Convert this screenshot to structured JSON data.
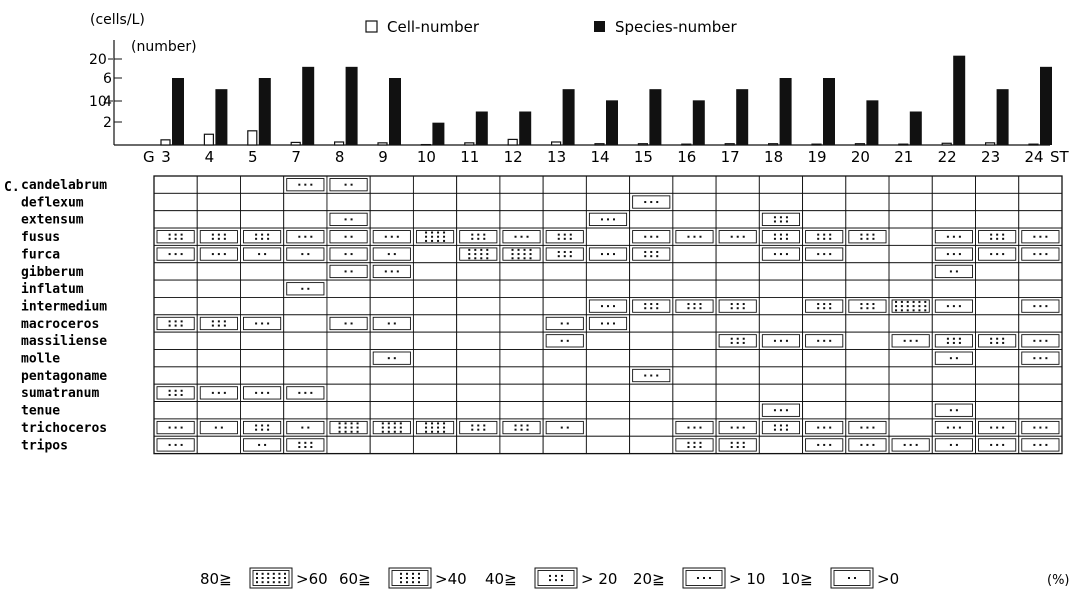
{
  "chart_data": [
    {
      "type": "bar",
      "categories": [
        "3",
        "4",
        "5",
        "7",
        "8",
        "9",
        "10",
        "11",
        "12",
        "13",
        "14",
        "15",
        "16",
        "17",
        "18",
        "19",
        "20",
        "21",
        "22",
        "23",
        "24"
      ],
      "x_start_label": "G",
      "x_end_label": "ST",
      "left_axis_unit": "(cells/L)",
      "right_axis_unit": "(number)",
      "left_ticks": [
        "20",
        "10"
      ],
      "right_ticks": [
        "6",
        "4",
        "2"
      ],
      "legend": {
        "cell": {
          "marker": "white-box",
          "label": "Cell-number"
        },
        "species": {
          "marker": "black-box",
          "label": "Species-number"
        }
      },
      "series": [
        {
          "name": "Cell-number",
          "values": [
            1.2,
            2.5,
            3.3,
            0.6,
            0.7,
            0.5,
            0.1,
            0.5,
            1.3,
            0.7,
            0.3,
            0.3,
            0.2,
            0.3,
            0.3,
            0.2,
            0.3,
            0.2,
            0.4,
            0.5,
            0.2
          ]
        },
        {
          "name": "Species-number",
          "values": [
            6,
            5,
            6,
            7,
            7,
            6,
            2,
            3,
            3,
            5,
            4,
            5,
            4,
            5,
            6,
            6,
            4,
            3,
            8,
            5,
            7
          ]
        }
      ],
      "species_ylim": [
        0,
        8
      ]
    },
    {
      "type": "table",
      "genus_prefix": "C.",
      "stations": [
        "3",
        "4",
        "5",
        "7",
        "8",
        "9",
        "10",
        "11",
        "12",
        "13",
        "14",
        "15",
        "16",
        "17",
        "18",
        "19",
        "20",
        "21",
        "22",
        "23",
        "24"
      ],
      "rows": [
        {
          "name": "candelabrum",
          "classes": [
            0,
            0,
            0,
            2,
            1,
            0,
            0,
            0,
            0,
            0,
            0,
            0,
            0,
            0,
            0,
            0,
            0,
            0,
            0,
            0,
            0
          ]
        },
        {
          "name": "deflexum",
          "classes": [
            0,
            0,
            0,
            0,
            0,
            0,
            0,
            0,
            0,
            0,
            0,
            2,
            0,
            0,
            0,
            0,
            0,
            0,
            0,
            0,
            0
          ]
        },
        {
          "name": "extensum",
          "classes": [
            0,
            0,
            0,
            0,
            1,
            0,
            0,
            0,
            0,
            0,
            2,
            0,
            0,
            0,
            3,
            0,
            0,
            0,
            0,
            0,
            0
          ]
        },
        {
          "name": "fusus",
          "classes": [
            3,
            3,
            3,
            2,
            1,
            2,
            4,
            3,
            2,
            3,
            0,
            2,
            2,
            2,
            3,
            3,
            3,
            0,
            2,
            3,
            2
          ]
        },
        {
          "name": "furca",
          "classes": [
            2,
            2,
            1,
            1,
            1,
            1,
            0,
            4,
            4,
            3,
            2,
            3,
            0,
            0,
            2,
            2,
            0,
            0,
            2,
            2,
            2
          ]
        },
        {
          "name": "gibberum",
          "classes": [
            0,
            0,
            0,
            0,
            1,
            2,
            0,
            0,
            0,
            0,
            0,
            0,
            0,
            0,
            0,
            0,
            0,
            0,
            1,
            0,
            0
          ]
        },
        {
          "name": "inflatum",
          "classes": [
            0,
            0,
            0,
            1,
            0,
            0,
            0,
            0,
            0,
            0,
            0,
            0,
            0,
            0,
            0,
            0,
            0,
            0,
            0,
            0,
            0
          ]
        },
        {
          "name": "intermedium",
          "classes": [
            0,
            0,
            0,
            0,
            0,
            0,
            0,
            0,
            0,
            0,
            2,
            3,
            3,
            3,
            0,
            3,
            3,
            5,
            2,
            0,
            2
          ]
        },
        {
          "name": "macroceros",
          "classes": [
            3,
            3,
            2,
            0,
            1,
            1,
            0,
            0,
            0,
            1,
            2,
            0,
            0,
            0,
            0,
            0,
            0,
            0,
            0,
            0,
            0
          ]
        },
        {
          "name": "massiliense",
          "classes": [
            0,
            0,
            0,
            0,
            0,
            0,
            0,
            0,
            0,
            1,
            0,
            0,
            0,
            3,
            2,
            2,
            0,
            2,
            3,
            3,
            2
          ]
        },
        {
          "name": "molle",
          "classes": [
            0,
            0,
            0,
            0,
            0,
            1,
            0,
            0,
            0,
            0,
            0,
            0,
            0,
            0,
            0,
            0,
            0,
            0,
            1,
            0,
            2
          ]
        },
        {
          "name": "pentagoname",
          "classes": [
            0,
            0,
            0,
            0,
            0,
            0,
            0,
            0,
            0,
            0,
            0,
            2,
            0,
            0,
            0,
            0,
            0,
            0,
            0,
            0,
            0
          ]
        },
        {
          "name": "sumatranum",
          "classes": [
            3,
            2,
            2,
            2,
            0,
            0,
            0,
            0,
            0,
            0,
            0,
            0,
            0,
            0,
            0,
            0,
            0,
            0,
            0,
            0,
            0
          ]
        },
        {
          "name": "tenue",
          "classes": [
            0,
            0,
            0,
            0,
            0,
            0,
            0,
            0,
            0,
            0,
            0,
            0,
            0,
            0,
            2,
            0,
            0,
            0,
            1,
            0,
            0
          ]
        },
        {
          "name": "trichoceros",
          "classes": [
            2,
            1,
            3,
            1,
            4,
            4,
            4,
            3,
            3,
            1,
            0,
            0,
            2,
            2,
            3,
            2,
            2,
            0,
            2,
            2,
            2
          ]
        },
        {
          "name": "tripos",
          "classes": [
            2,
            0,
            1,
            3,
            0,
            0,
            0,
            0,
            0,
            0,
            0,
            0,
            3,
            3,
            0,
            2,
            2,
            2,
            1,
            2,
            2
          ]
        }
      ],
      "legend": [
        {
          "class": 5,
          "left": "80≧",
          "right": ">60"
        },
        {
          "class": 4,
          "left": "60≧",
          "right": ">40"
        },
        {
          "class": 3,
          "left": "40≧",
          "right": "> 20"
        },
        {
          "class": 2,
          "left": "20≧",
          "right": "> 10"
        },
        {
          "class": 1,
          "left": "10≧",
          "right": ">0"
        }
      ],
      "legend_unit": "(%)"
    }
  ]
}
